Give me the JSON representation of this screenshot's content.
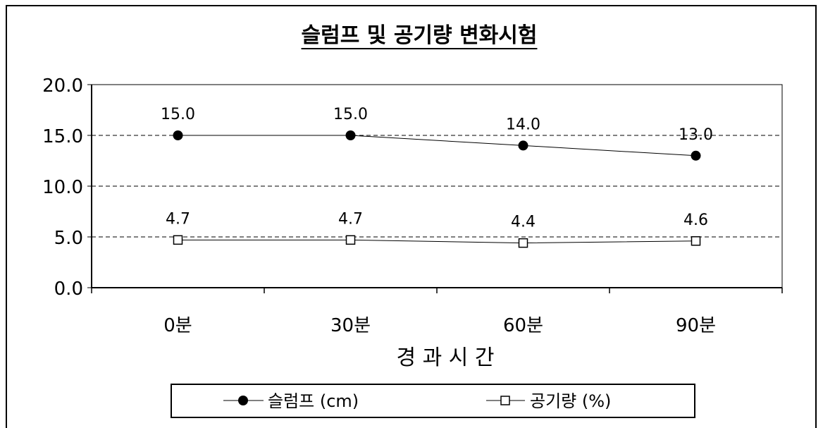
{
  "chart_data": {
    "type": "line",
    "title": "슬럼프 및 공기량 변화시험",
    "xlabel": "경 과 시 간",
    "ylabel": "",
    "categories": [
      "0분",
      "30분",
      "60분",
      "90분"
    ],
    "ylim": [
      0,
      20
    ],
    "yticks": [
      "0.0",
      "5.0",
      "10.0",
      "15.0",
      "20.0"
    ],
    "grid": "horizontal dashed",
    "legend_position": "bottom",
    "series": [
      {
        "name": "슬럼프 (cm)",
        "values": [
          15.0,
          15.0,
          14.0,
          13.0
        ],
        "labels": [
          "15.0",
          "15.0",
          "14.0",
          "13.0"
        ],
        "marker": "filled-circle",
        "color": "#000000"
      },
      {
        "name": "공기량 (%)",
        "values": [
          4.7,
          4.7,
          4.4,
          4.6
        ],
        "labels": [
          "4.7",
          "4.7",
          "4.4",
          "4.6"
        ],
        "marker": "hollow-square",
        "color": "#000000"
      }
    ]
  }
}
